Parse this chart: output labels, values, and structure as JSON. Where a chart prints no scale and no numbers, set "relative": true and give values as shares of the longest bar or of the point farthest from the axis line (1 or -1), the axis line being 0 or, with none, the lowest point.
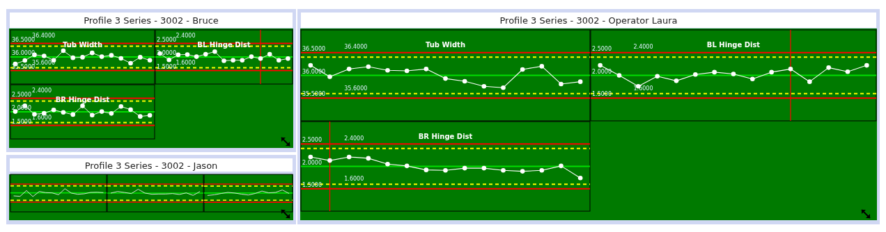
{
  "chart_data": [
    {
      "type": "other",
      "title": "Profile 3 Series - 3002 - Bruce"
    },
    {
      "type": "line",
      "title": "Tub Width",
      "categories": [
        null,
        null,
        null,
        null,
        null,
        null,
        null,
        null,
        null,
        null,
        null,
        null,
        null,
        null,
        null
      ],
      "series": [
        {
          "color": "#ffffff",
          "values": [
            35.74,
            35.87,
            36.08,
            36.04,
            35.88,
            36.23,
            35.97,
            35.99,
            36.15,
            36.01,
            36.06,
            35.95,
            35.77,
            35.99,
            35.88
          ]
        }
      ],
      "ylim": [
        35,
        37
      ],
      "yticks": [
        {
          "value": 35.5,
          "label": "35.5000"
        },
        {
          "value": 36,
          "label": "36.0000"
        },
        {
          "value": 36.5,
          "label": "36.5000"
        }
      ],
      "ref_lines": [
        {
          "axis": "y",
          "value": 36.5,
          "color": "#ff0000"
        },
        {
          "axis": "y",
          "value": 36.4,
          "label": "36.4000",
          "color": "#ffff00",
          "line_style": "dashed"
        },
        {
          "axis": "y",
          "value": 36,
          "color": "#00e000"
        },
        {
          "axis": "y",
          "value": 35.6,
          "label": "35.6000",
          "color": "#ffff00",
          "line_style": "dashed"
        },
        {
          "axis": "y",
          "value": 35.5,
          "color": "#ff0000"
        }
      ],
      "marker": "circle"
    },
    {
      "type": "line",
      "title": "BL Hinge Dist",
      "categories": [
        null,
        null,
        null,
        null,
        null,
        null,
        null,
        null,
        null,
        null,
        null,
        null,
        null,
        null,
        null
      ],
      "series": [
        {
          "color": "#ffffff",
          "values": [
            2.13,
            1.89,
            2.08,
            2.09,
            2.01,
            2.1,
            2.2,
            1.86,
            1.88,
            1.88,
            2.01,
            1.94,
            2.1,
            1.88,
            1.94
          ]
        }
      ],
      "ylim": [
        1,
        3
      ],
      "yticks": [
        {
          "value": 1.5,
          "label": "1.5000"
        },
        {
          "value": 2,
          "label": "2.0000"
        },
        {
          "value": 2.5,
          "label": "2.5000"
        }
      ],
      "ref_lines": [
        {
          "axis": "y",
          "value": 2.5,
          "color": "#ff0000"
        },
        {
          "axis": "y",
          "value": 2.4,
          "label": "2.4000",
          "color": "#ffff00",
          "line_style": "dashed"
        },
        {
          "axis": "y",
          "value": 2,
          "color": "#00e000"
        },
        {
          "axis": "y",
          "value": 1.6,
          "label": "1.6000",
          "color": "#ffff00",
          "line_style": "dashed"
        },
        {
          "axis": "y",
          "value": 1.5,
          "color": "#ff0000"
        }
      ],
      "marker": "circle"
    },
    {
      "type": "line",
      "title": "BR Hinge Dist",
      "categories": [
        null,
        null,
        null,
        null,
        null,
        null,
        null,
        null,
        null,
        null,
        null,
        null,
        null,
        null,
        null
      ],
      "series": [
        {
          "color": "#ffffff",
          "values": [
            2.01,
            2.22,
            1.91,
            1.95,
            2.07,
            1.98,
            1.9,
            2.22,
            1.88,
            2.01,
            1.94,
            2.2,
            2.08,
            1.83,
            1.87
          ]
        }
      ],
      "ylim": [
        1,
        3
      ],
      "yticks": [
        {
          "value": 1.5,
          "label": "1.5000"
        },
        {
          "value": 2,
          "label": "2.0000"
        },
        {
          "value": 2.5,
          "label": "2.5000"
        }
      ],
      "ref_lines": [
        {
          "axis": "y",
          "value": 2.5,
          "color": "#ff0000"
        },
        {
          "axis": "y",
          "value": 2.4,
          "label": "2.4000",
          "color": "#ffff00",
          "line_style": "dashed"
        },
        {
          "axis": "y",
          "value": 2,
          "color": "#00e000"
        },
        {
          "axis": "y",
          "value": 1.6,
          "label": "1.6000",
          "color": "#ffff00",
          "line_style": "dashed"
        },
        {
          "axis": "y",
          "value": 1.5,
          "color": "#ff0000"
        }
      ],
      "marker": "circle"
    },
    {
      "type": "other",
      "title": "Profile 3 Series - 3002 - Jason"
    },
    {
      "type": "line",
      "relative": true,
      "categories": [
        null,
        null,
        null,
        null,
        null,
        null,
        null,
        null,
        null,
        null,
        null,
        null,
        null,
        null,
        null
      ],
      "series": [
        {
          "color": "#e8e8e8",
          "values": [
            0.69,
            0.67,
            0.92,
            0.66,
            0.88,
            0.83,
            0.82,
            0.74,
            1,
            0.81,
            0.76,
            0.78,
            0.84,
            0.85,
            0.83
          ]
        }
      ],
      "ref_lines": [
        {
          "axis": "y",
          "value": 1.2,
          "color": "#ff0000"
        },
        {
          "axis": "y",
          "value": 1.12,
          "color": "#ffff00",
          "line_style": "dashed"
        },
        {
          "axis": "y",
          "value": 0.82,
          "color": "#00e000"
        },
        {
          "axis": "y",
          "value": 0.5,
          "color": "#ffff00",
          "line_style": "dashed"
        },
        {
          "axis": "y",
          "value": 0.42,
          "color": "#ff0000"
        }
      ],
      "marker": "none"
    },
    {
      "type": "line",
      "relative": true,
      "categories": [
        null,
        null,
        null,
        null,
        null,
        null,
        null,
        null,
        null,
        null,
        null,
        null,
        null,
        null
      ],
      "series": [
        {
          "color": "#e8e8e8",
          "values": [
            0.83,
            0.9,
            0.86,
            0.81,
            1,
            0.83,
            0.78,
            0.79,
            0.79,
            0.81,
            0.77,
            0.84,
            0.73,
            0.9
          ]
        }
      ],
      "ref_lines": [
        {
          "axis": "y",
          "value": 1.23,
          "color": "#ff0000"
        },
        {
          "axis": "y",
          "value": 1.15,
          "color": "#ffff00",
          "line_style": "dashed"
        },
        {
          "axis": "y",
          "value": 0.83,
          "color": "#00e000"
        },
        {
          "axis": "y",
          "value": 0.51,
          "color": "#ffff00",
          "line_style": "dashed"
        },
        {
          "axis": "y",
          "value": 0.43,
          "color": "#ff0000"
        }
      ],
      "marker": "none"
    },
    {
      "type": "line",
      "relative": true,
      "categories": [
        null,
        null,
        null,
        null,
        null,
        null,
        null,
        null,
        null,
        null,
        null,
        null,
        null
      ],
      "series": [
        {
          "color": "#e8e8e8",
          "values": [
            0.75,
            0.78,
            0.84,
            0.89,
            0.86,
            0.81,
            0.77,
            0.84,
            0.95,
            0.87,
            0.89,
            1,
            0.84
          ]
        }
      ],
      "ref_lines": [
        {
          "axis": "y",
          "value": 1.27,
          "color": "#ff0000"
        },
        {
          "axis": "y",
          "value": 1.18,
          "color": "#ffff00",
          "line_style": "dashed"
        },
        {
          "axis": "y",
          "value": 0.86,
          "color": "#00e000"
        },
        {
          "axis": "y",
          "value": 0.53,
          "color": "#ffff00",
          "line_style": "dashed"
        },
        {
          "axis": "y",
          "value": 0.44,
          "color": "#ff0000"
        }
      ],
      "marker": "none"
    },
    {
      "type": "other",
      "title": "Profile 3 Series - 3002 - Operator Laura"
    },
    {
      "type": "line",
      "title": "Tub Width",
      "categories": [
        null,
        null,
        null,
        null,
        null,
        null,
        null,
        null,
        null,
        null,
        null,
        null,
        null,
        null,
        null
      ],
      "series": [
        {
          "color": "#ffffff",
          "values": [
            36.22,
            35.97,
            36.14,
            36.19,
            36.11,
            36.1,
            36.14,
            35.93,
            35.87,
            35.76,
            35.73,
            36.13,
            36.2,
            35.81,
            35.86
          ]
        }
      ],
      "ylim": [
        35,
        37
      ],
      "yticks": [
        {
          "value": 35.5,
          "label": "35.5000"
        },
        {
          "value": 36,
          "label": "36.0000"
        },
        {
          "value": 36.5,
          "label": "36.5000"
        }
      ],
      "ref_lines": [
        {
          "axis": "y",
          "value": 36.5,
          "color": "#ff0000"
        },
        {
          "axis": "y",
          "value": 36.4,
          "label": "36.4000",
          "color": "#ffff00",
          "line_style": "dashed"
        },
        {
          "axis": "y",
          "value": 36,
          "color": "#00e000"
        },
        {
          "axis": "y",
          "value": 35.6,
          "label": "35.6000",
          "color": "#ffff00",
          "line_style": "dashed"
        },
        {
          "axis": "y",
          "value": 35.5,
          "color": "#ff0000"
        }
      ],
      "marker": "circle"
    },
    {
      "type": "line",
      "title": "BL Hinge Dist",
      "categories": [
        null,
        null,
        null,
        null,
        null,
        null,
        null,
        null,
        null,
        null,
        null,
        null,
        null,
        null,
        null
      ],
      "series": [
        {
          "color": "#ffffff",
          "values": [
            2.22,
            2,
            1.76,
            1.98,
            1.88,
            2.02,
            2.07,
            2.03,
            1.92,
            2.07,
            2.14,
            1.86,
            2.17,
            2.08,
            2.22
          ]
        }
      ],
      "ylim": [
        1,
        3
      ],
      "yticks": [
        {
          "value": 1.5,
          "label": "1.5000"
        },
        {
          "value": 2,
          "label": "2.0000"
        },
        {
          "value": 2.5,
          "label": "2.5000"
        }
      ],
      "ref_lines": [
        {
          "axis": "y",
          "value": 2.5,
          "color": "#ff0000"
        },
        {
          "axis": "y",
          "value": 2.4,
          "label": "2.4000",
          "color": "#ffff00",
          "line_style": "dashed"
        },
        {
          "axis": "y",
          "value": 2,
          "color": "#00e000"
        },
        {
          "axis": "y",
          "value": 1.6,
          "label": "1.6000",
          "color": "#ffff00",
          "line_style": "dashed"
        },
        {
          "axis": "y",
          "value": 1.5,
          "color": "#ff0000"
        }
      ],
      "marker": "circle"
    },
    {
      "type": "line",
      "title": "BR Hinge Dist",
      "categories": [
        null,
        null,
        null,
        null,
        null,
        null,
        null,
        null,
        null,
        null,
        null,
        null,
        null,
        null,
        null
      ],
      "series": [
        {
          "color": "#ffffff",
          "values": [
            2.21,
            2.13,
            2.21,
            2.18,
            2.05,
            2.01,
            1.92,
            1.91,
            1.96,
            1.96,
            1.91,
            1.89,
            1.91,
            2.01,
            1.74
          ]
        }
      ],
      "ylim": [
        1,
        3
      ],
      "yticks": [
        {
          "value": 1.5,
          "label": "1.5000"
        },
        {
          "value": 2,
          "label": "2.0000"
        },
        {
          "value": 2.5,
          "label": "2.5000"
        }
      ],
      "ref_lines": [
        {
          "axis": "y",
          "value": 2.5,
          "color": "#ff0000"
        },
        {
          "axis": "y",
          "value": 2.4,
          "label": "2.4000",
          "color": "#ffff00",
          "line_style": "dashed"
        },
        {
          "axis": "y",
          "value": 2,
          "color": "#00e000"
        },
        {
          "axis": "y",
          "value": 1.6,
          "label": "1.6000",
          "color": "#ffff00",
          "line_style": "dashed"
        },
        {
          "axis": "y",
          "value": 1.5,
          "color": "#ff0000"
        }
      ],
      "marker": "circle"
    }
  ]
}
